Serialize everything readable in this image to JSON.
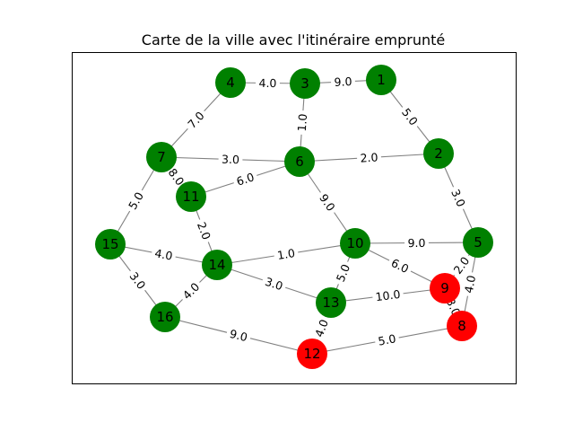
{
  "title": "Carte de la ville avec l'itinéraire emprunté",
  "colors": {
    "visited": "#008000",
    "route": "#ff0000",
    "edge": "#808080"
  },
  "nodes": [
    {
      "id": "1",
      "status": "visited"
    },
    {
      "id": "2",
      "status": "visited"
    },
    {
      "id": "3",
      "status": "visited"
    },
    {
      "id": "4",
      "status": "visited"
    },
    {
      "id": "5",
      "status": "visited"
    },
    {
      "id": "6",
      "status": "visited"
    },
    {
      "id": "7",
      "status": "visited"
    },
    {
      "id": "8",
      "status": "route"
    },
    {
      "id": "9",
      "status": "route"
    },
    {
      "id": "10",
      "status": "visited"
    },
    {
      "id": "11",
      "status": "visited"
    },
    {
      "id": "12",
      "status": "route"
    },
    {
      "id": "13",
      "status": "visited"
    },
    {
      "id": "14",
      "status": "visited"
    },
    {
      "id": "15",
      "status": "visited"
    },
    {
      "id": "16",
      "status": "visited"
    }
  ],
  "edges": [
    {
      "from": "4",
      "to": "3",
      "weight": "4.0"
    },
    {
      "from": "3",
      "to": "1",
      "weight": "9.0"
    },
    {
      "from": "1",
      "to": "2",
      "weight": "5.0"
    },
    {
      "from": "3",
      "to": "6",
      "weight": "1.0"
    },
    {
      "from": "4",
      "to": "7",
      "weight": "7.0"
    },
    {
      "from": "7",
      "to": "6",
      "weight": "3.0"
    },
    {
      "from": "6",
      "to": "2",
      "weight": "2.0"
    },
    {
      "from": "2",
      "to": "5",
      "weight": "3.0"
    },
    {
      "from": "11",
      "to": "6",
      "weight": "6.0"
    },
    {
      "from": "7",
      "to": "11",
      "weight": "8.0"
    },
    {
      "from": "7",
      "to": "15",
      "weight": "5.0"
    },
    {
      "from": "6",
      "to": "10",
      "weight": "9.0"
    },
    {
      "from": "11",
      "to": "14",
      "weight": "2.0"
    },
    {
      "from": "10",
      "to": "5",
      "weight": "9.0"
    },
    {
      "from": "15",
      "to": "14",
      "weight": "4.0"
    },
    {
      "from": "14",
      "to": "10",
      "weight": "1.0"
    },
    {
      "from": "10",
      "to": "9",
      "weight": "6.0"
    },
    {
      "from": "5",
      "to": "9",
      "weight": "2.0"
    },
    {
      "from": "5",
      "to": "8",
      "weight": "4.0"
    },
    {
      "from": "9",
      "to": "8",
      "weight": "3.0"
    },
    {
      "from": "15",
      "to": "16",
      "weight": "3.0"
    },
    {
      "from": "14",
      "to": "13",
      "weight": "3.0"
    },
    {
      "from": "10",
      "to": "13",
      "weight": "5.0"
    },
    {
      "from": "13",
      "to": "9",
      "weight": "10.0"
    },
    {
      "from": "16",
      "to": "14",
      "weight": "4.0"
    },
    {
      "from": "16",
      "to": "12",
      "weight": "9.0"
    },
    {
      "from": "13",
      "to": "12",
      "weight": "4.0"
    },
    {
      "from": "12",
      "to": "8",
      "weight": "5.0"
    }
  ]
}
